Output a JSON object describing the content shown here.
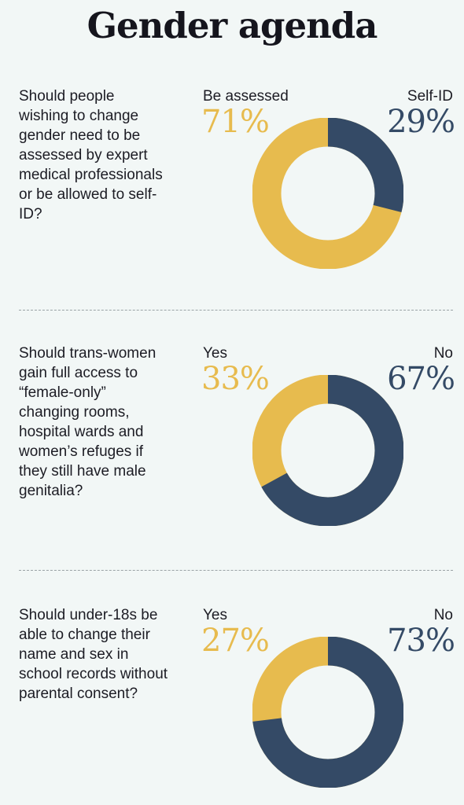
{
  "title": "Gender agenda",
  "colors": {
    "yellow": "#e7bb4e",
    "navy": "#344a66"
  },
  "panels": [
    {
      "question": "Should people wishing to change gender need to be assessed by expert medical professionals or be allowed to self-ID?",
      "left_label": "Be assessed",
      "left_pct": "71%",
      "right_label": "Self-ID",
      "right_pct": "29%"
    },
    {
      "question": "Should trans-women gain full access to “female-only” changing rooms, hospital wards and women’s refuges if they still have male genitalia?",
      "left_label": "Yes",
      "left_pct": "33%",
      "right_label": "No",
      "right_pct": "67%"
    },
    {
      "question": "Should under-18s be able to change their name and sex in school records without parental consent?",
      "left_label": "Yes",
      "left_pct": "27%",
      "right_label": "No",
      "right_pct": "73%"
    }
  ],
  "chart_data": [
    {
      "type": "pie",
      "labels": [
        "Be assessed",
        "Self-ID"
      ],
      "values": [
        71,
        29
      ]
    },
    {
      "type": "pie",
      "labels": [
        "Yes",
        "No"
      ],
      "values": [
        33,
        67
      ]
    },
    {
      "type": "pie",
      "labels": [
        "Yes",
        "No"
      ],
      "values": [
        27,
        73
      ]
    }
  ]
}
